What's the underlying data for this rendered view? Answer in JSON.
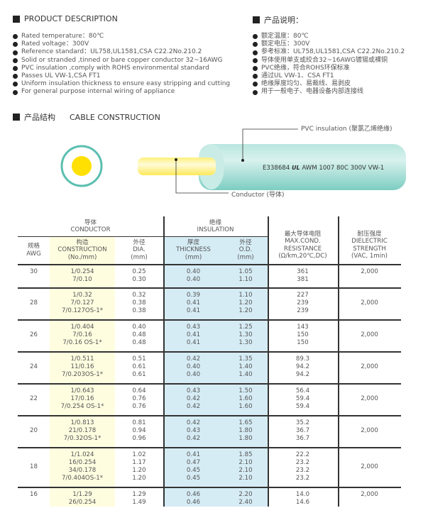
{
  "desc_en": {
    "title": "PRODUCT DESCRIPTION",
    "items": [
      "Rated temperature：80℃",
      "Rated voltage：300V",
      "Reference standard：UL758,UL1581,CSA C22.2No.210.2",
      "Solid or stranded ,tinned or bare copper conductor 32~16AWG",
      "PVC insulation ,comply with ROHS environmental standard",
      "Passes UL VW-1,CSA FT1",
      "Uniform insulation thickness to ensure easy stripping and cutting",
      "For general purpose internal wiring of appliance"
    ]
  },
  "desc_cn": {
    "title": "产品说明：",
    "items": [
      "额定温度：80℃",
      "额定电压：300V",
      "参考标准：UL758,UL1581,CSA C22.2No.210.2",
      "导体使用单支或绞合32~16AWG镀锡或裸铜",
      "PVC绝缘，符合ROHS环保标准",
      "通过UL VW-1、CSA FT1",
      "绝缘厚度均匀、易裁线、易剥皮",
      "用于一般电子、电器设备内部连接线"
    ]
  },
  "construction": {
    "title_cn": "产品结构",
    "title_en": "CABLE CONSTRUCTION",
    "insulation_label": "PVC insulation (聚氯乙烯绝缘)",
    "conductor_label": "Conductor (导体)",
    "print_code": "E338684",
    "print_mark": "UL",
    "print_spec": "AWM 1007 80C 300V VW-1",
    "colors": {
      "insulation": "#9fdcd4",
      "insulation_ring": "#5bbfb0",
      "conductor": "#ffe000"
    }
  },
  "table": {
    "group_conductor": [
      "导体",
      "CONDUCTOR"
    ],
    "group_insulation": [
      "绝缘",
      "INSULATION"
    ],
    "headers": [
      [
        "规格",
        "AWG"
      ],
      [
        "构造",
        "CONSTRUCTION",
        "(No./mm)"
      ],
      [
        "外径",
        "DIA.",
        "(mm)"
      ],
      [
        "厚度",
        "THICKNESS",
        "(mm)"
      ],
      [
        "外径",
        "O.D.",
        "(mm)"
      ],
      [
        "最大导体电阻",
        "MAX.COND.",
        "RESISTANCE",
        "(Ω/km,20℃,DC)"
      ],
      [
        "耐压强度",
        "DIELECTRIC",
        "STRENGTH",
        "(VAC, 1min)"
      ]
    ],
    "colors": {
      "construction_bg": "#fffde0",
      "insulation_bg": "#d6ecf5"
    },
    "rows": [
      {
        "awg": "30",
        "construction": [
          "1/0.254",
          "7/0.10"
        ],
        "dia": [
          "0.25",
          "0.30"
        ],
        "thickness": [
          "0.40",
          "0.40"
        ],
        "od": [
          "1.05",
          "1.10"
        ],
        "resistance": [
          "361",
          "381"
        ],
        "dielectric": "2,000"
      },
      {
        "awg": "28",
        "construction": [
          "1/0.32",
          "7/0.127",
          "7/0.127OS-1*"
        ],
        "dia": [
          "0.32",
          "0.38",
          "0.38"
        ],
        "thickness": [
          "0.39",
          "0.41",
          "0.41"
        ],
        "od": [
          "1.10",
          "1.20",
          "1.20"
        ],
        "resistance": [
          "227",
          "239",
          "239"
        ],
        "dielectric": "2,000"
      },
      {
        "awg": "26",
        "construction": [
          "1/0.404",
          "7/0.16",
          "7/0.16 OS-1*"
        ],
        "dia": [
          "0.40",
          "0.48",
          "0.48"
        ],
        "thickness": [
          "0.43",
          "0.41",
          "0.41"
        ],
        "od": [
          "1.25",
          "1.30",
          "1.30"
        ],
        "resistance": [
          "143",
          "150",
          "150"
        ],
        "dielectric": "2,000"
      },
      {
        "awg": "24",
        "construction": [
          "1/0.511",
          "11/0.16",
          "7/0.203OS-1*"
        ],
        "dia": [
          "0.51",
          "0.61",
          "0.61"
        ],
        "thickness": [
          "0.42",
          "0.40",
          "0.40"
        ],
        "od": [
          "1.35",
          "1.40",
          "1.40"
        ],
        "resistance": [
          "89.3",
          "94.2",
          "94.2"
        ],
        "dielectric": "2,000"
      },
      {
        "awg": "22",
        "construction": [
          "1/0.643",
          "17/0.16",
          "7/0.254 OS-1*"
        ],
        "dia": [
          "0.64",
          "0.76",
          "0.76"
        ],
        "thickness": [
          "0.43",
          "0.42",
          "0.42"
        ],
        "od": [
          "1.50",
          "1.60",
          "1.60"
        ],
        "resistance": [
          "56.4",
          "59.4",
          "59.4"
        ],
        "dielectric": "2,000"
      },
      {
        "awg": "20",
        "construction": [
          "1/0.813",
          "21/0.178",
          "7/0.32OS-1*"
        ],
        "dia": [
          "0.81",
          "0.94",
          "0.96"
        ],
        "thickness": [
          "0.42",
          "0.43",
          "0.42"
        ],
        "od": [
          "1.65",
          "1.80",
          "1.80"
        ],
        "resistance": [
          "35.2",
          "36.7",
          "36.7"
        ],
        "dielectric": "2,000"
      },
      {
        "awg": "18",
        "construction": [
          "1/1.024",
          "16/0.254",
          "34/0.178",
          "7/0.404OS-1*"
        ],
        "dia": [
          "1.02",
          "1.17",
          "1.20",
          "1.20"
        ],
        "thickness": [
          "0.41",
          "0.47",
          "0.45",
          "0.45"
        ],
        "od": [
          "1.85",
          "2.10",
          "2.10",
          "2.10"
        ],
        "resistance": [
          "22.2",
          "23.2",
          "23.2",
          "23.2"
        ],
        "dielectric": "2,000"
      },
      {
        "awg": "16",
        "construction": [
          "1/1.29",
          "26/0.254"
        ],
        "dia": [
          "1.29",
          "1.49"
        ],
        "thickness": [
          "0.46",
          "0.46"
        ],
        "od": [
          "2.20",
          "2.40"
        ],
        "resistance": [
          "14.0",
          "14.6"
        ],
        "dielectric": "2,000"
      }
    ]
  }
}
